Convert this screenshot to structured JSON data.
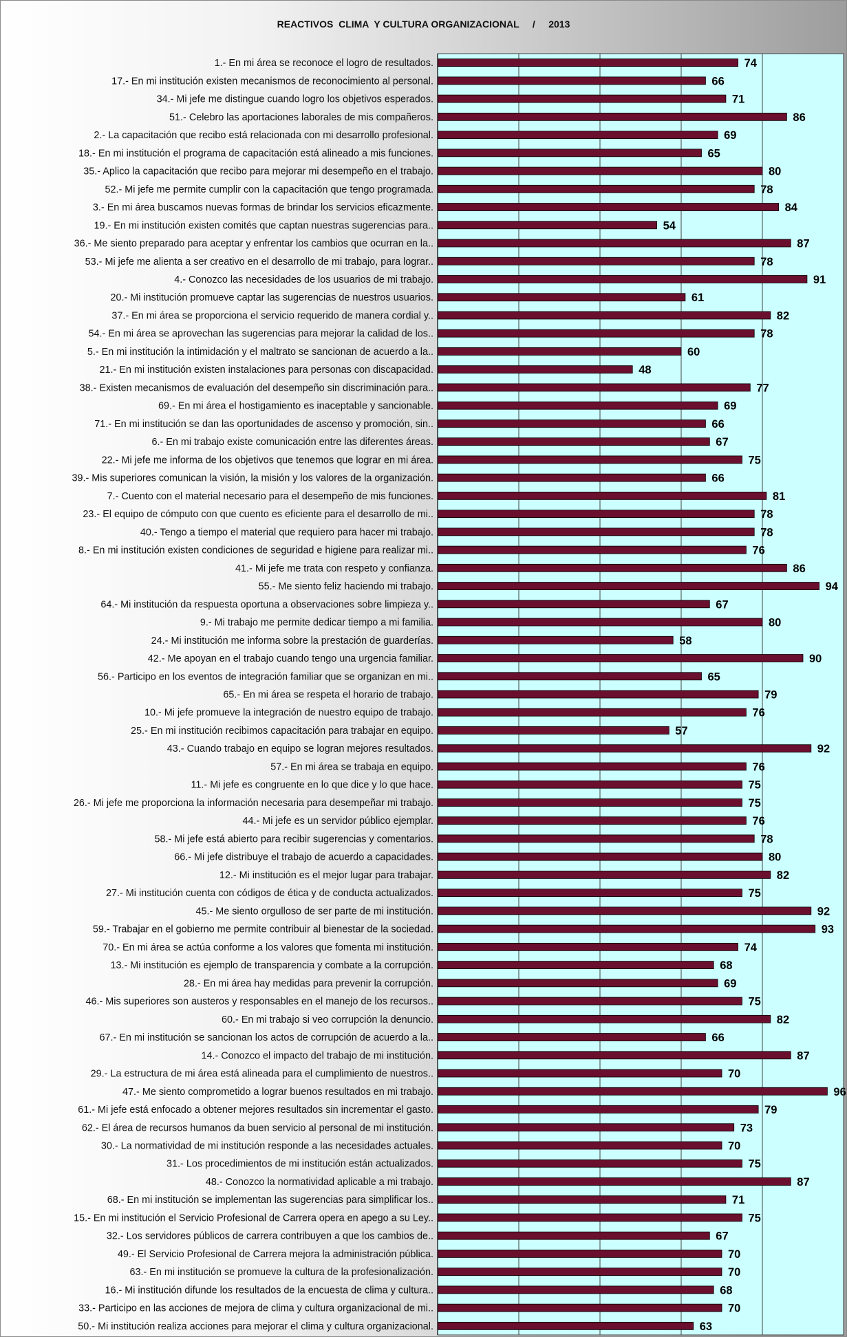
{
  "chart_data": {
    "type": "bar",
    "orientation": "horizontal",
    "title": "REACTIVOS  CLIMA  Y CULTURA ORGANIZACIONAL     /     2013",
    "xlim": [
      0,
      100
    ],
    "grid": true,
    "colors": {
      "bar": "#6b0f2e",
      "plot_bg": "#ccffff",
      "gridline": "#404040"
    },
    "categories": [
      "1.- En mi área se reconoce el logro de resultados.",
      "17.- En mi institución existen mecanismos de reconocimiento al personal.",
      "34.- Mi jefe me distingue cuando logro los objetivos esperados.",
      "51.- Celebro las aportaciones laborales de mis compañeros.",
      "2.- La capacitación que recibo está relacionada con mi desarrollo profesional.",
      "18.- En mi institución el programa de capacitación está alineado a mis funciones.",
      "35.- Aplico la capacitación que recibo para mejorar mi desempeño en el trabajo.",
      "52.- Mi jefe me permite cumplir con la capacitación que tengo programada.",
      "3.- En mi área buscamos nuevas formas de brindar los servicios eficazmente.",
      "19.- En mi institución existen comités que captan nuestras sugerencias para..",
      "36.- Me siento preparado para aceptar y enfrentar los cambios que ocurran en la..",
      "53.- Mi jefe me alienta a ser creativo en el desarrollo de mi trabajo, para lograr..",
      "4.- Conozco las necesidades de los usuarios de mi trabajo.",
      "20.- Mi institución promueve captar las sugerencias de nuestros usuarios.",
      "37.- En mi área se proporciona el servicio requerido de manera cordial y..",
      "54.- En mi área se aprovechan las sugerencias para mejorar la calidad de los..",
      "5.- En mi institución la intimidación y el maltrato se sancionan de acuerdo a la..",
      "21.- En mi institución existen instalaciones para personas con discapacidad.",
      "38.- Existen mecanismos de evaluación del desempeño sin discriminación para..",
      "69.- En mi área el hostigamiento es inaceptable y sancionable.",
      "71.- En mi institución se dan las oportunidades de ascenso y promoción, sin..",
      "6.- En mi trabajo existe comunicación entre las diferentes áreas.",
      "22.- Mi jefe me informa de los objetivos que tenemos que lograr en mi área.",
      "39.- Mis superiores comunican la visión, la misión y los valores de la organización.",
      "7.- Cuento con el material necesario para el desempeño de mis funciones.",
      "23.- El equipo de cómputo con que cuento es eficiente para el desarrollo de mi..",
      "40.- Tengo a tiempo el material que requiero para hacer mi trabajo.",
      "8.- En mi institución existen condiciones de seguridad e higiene para realizar mi..",
      "41.- Mi jefe me trata con respeto y confianza.",
      "55.- Me siento feliz haciendo mi trabajo.",
      "64.- Mi institución da respuesta oportuna a observaciones sobre limpieza y..",
      "9.- Mi trabajo me permite dedicar tiempo a mi familia.",
      "24.- Mi institución me informa sobre la prestación de guarderías.",
      "42.- Me apoyan en el trabajo cuando tengo una urgencia familiar.",
      "56.- Participo en los eventos de integración familiar que se organizan en mi..",
      "65.- En mi área se respeta el horario de trabajo.",
      "10.- Mi jefe promueve la integración de nuestro equipo de trabajo.",
      "25.- En mi institución recibimos capacitación para trabajar en equipo.",
      "43.- Cuando trabajo en equipo se logran mejores resultados.",
      "57.- En mi área se trabaja en equipo.",
      "11.- Mi jefe es congruente en lo que dice y lo que hace.",
      "26.- Mi jefe me proporciona la información necesaria para desempeñar mi trabajo.",
      "44.- Mi jefe es un servidor público ejemplar.",
      "58.- Mi jefe está abierto para recibir sugerencias y comentarios.",
      "66.- Mi jefe distribuye el trabajo de acuerdo a capacidades.",
      "12.- Mi institución es el mejor lugar para trabajar.",
      "27.- Mi institución cuenta con códigos de ética y de conducta actualizados.",
      "45.- Me siento orgulloso de ser parte de mi institución.",
      "59.- Trabajar en el gobierno me permite contribuir al bienestar de la sociedad.",
      "70.- En mi área se actúa conforme a los valores que fomenta mi institución.",
      "13.- Mi institución es ejemplo de transparencia y combate a la corrupción.",
      "28.- En mi área hay medidas para prevenir la corrupción.",
      "46.- Mis superiores son austeros y responsables en el manejo de los recursos..",
      "60.- En mi trabajo si veo corrupción la denuncio.",
      "67.- En mi institución se sancionan los actos de corrupción de acuerdo a la..",
      "14.- Conozco el impacto del trabajo de mi institución.",
      "29.- La estructura de mi área está alineada para el cumplimiento de nuestros..",
      "47.- Me siento comprometido a lograr buenos resultados en mi trabajo.",
      "61.- Mi jefe está enfocado a obtener mejores resultados sin incrementar el gasto.",
      "62.- El área de recursos humanos da buen servicio al personal de mi institución.",
      "30.- La normatividad de mi institución responde a las necesidades actuales.",
      "31.- Los procedimientos de mi institución están actualizados.",
      "48.- Conozco la normatividad aplicable a mi trabajo.",
      "68.- En mi institución se implementan las sugerencias para simplificar los..",
      "15.- En mi institución el Servicio Profesional de Carrera opera en apego a su Ley..",
      "32.- Los servidores públicos de carrera contribuyen a que los cambios de..",
      "49.- El Servicio Profesional de Carrera mejora la administración pública.",
      "63.- En mi institución se promueve la cultura de la profesionalización.",
      "16.- Mi institución difunde los resultados de la encuesta de clima y cultura..",
      "33.- Participo en las acciones de mejora de clima y cultura organizacional de mi..",
      "50.- Mi institución realiza acciones para mejorar el clima y cultura organizacional."
    ],
    "values": [
      74,
      66,
      71,
      86,
      69,
      65,
      80,
      78,
      84,
      54,
      87,
      78,
      91,
      61,
      82,
      78,
      60,
      48,
      77,
      69,
      66,
      67,
      75,
      66,
      81,
      78,
      78,
      76,
      86,
      94,
      67,
      80,
      58,
      90,
      65,
      79,
      76,
      57,
      92,
      76,
      75,
      75,
      76,
      78,
      80,
      82,
      75,
      92,
      93,
      74,
      68,
      69,
      75,
      82,
      66,
      87,
      70,
      96,
      79,
      73,
      70,
      75,
      87,
      71,
      75,
      67,
      70,
      70,
      68,
      70,
      63
    ]
  }
}
